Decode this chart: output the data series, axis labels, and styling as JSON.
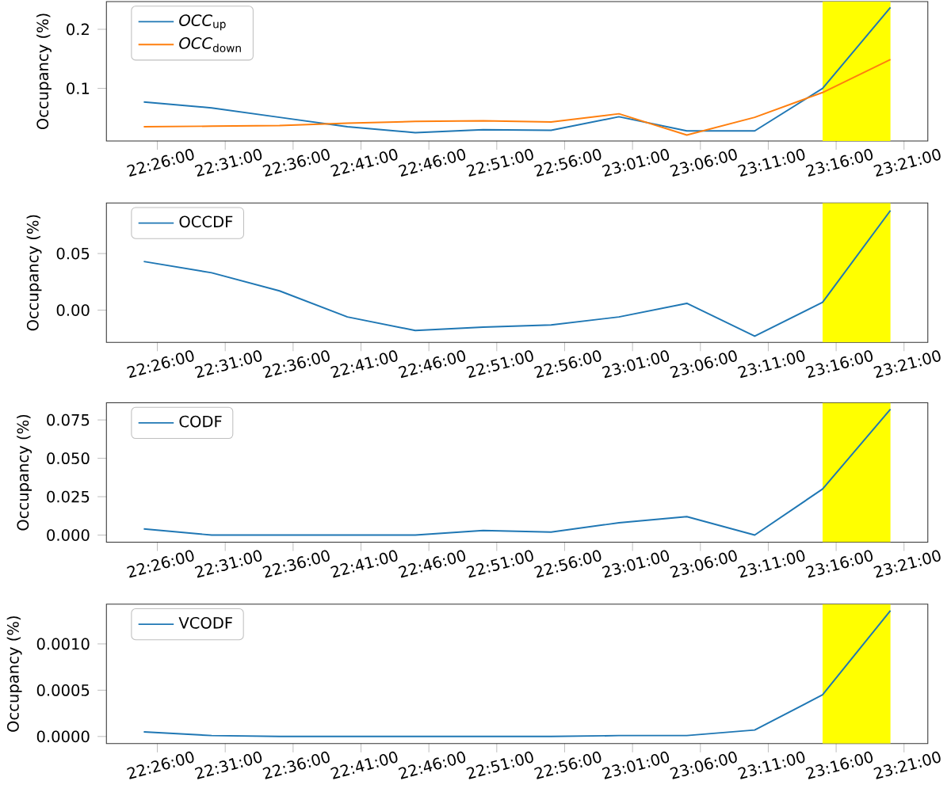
{
  "chart_data": [
    {
      "type": "line",
      "ylabel": "Occupancy (%)",
      "x": [
        22.41667,
        22.5,
        22.58333,
        22.66667,
        22.75,
        22.83333,
        22.91667,
        23.0,
        23.08333,
        23.16667,
        23.25,
        23.33333
      ],
      "series": [
        {
          "name": "*OCC*$_{up}$",
          "color": "#1f77b4",
          "values": [
            0.077,
            0.067,
            0.051,
            0.035,
            0.025,
            0.03,
            0.029,
            0.052,
            0.028,
            0.028,
            0.1,
            0.237
          ]
        },
        {
          "name": "*OCC*$_{down}$",
          "color": "#ff7f0e",
          "values": [
            0.035,
            0.036,
            0.037,
            0.041,
            0.044,
            0.045,
            0.043,
            0.057,
            0.021,
            0.051,
            0.093,
            0.149
          ]
        }
      ],
      "xlim": [
        22.3708,
        23.3792
      ],
      "ylim": [
        0.011,
        0.247
      ],
      "yticks": [
        0.1,
        0.2
      ],
      "xticks": [
        {
          "value": 22.43333,
          "label": "22:26:00"
        },
        {
          "value": 22.51667,
          "label": "22:31:00"
        },
        {
          "value": 22.6,
          "label": "22:36:00"
        },
        {
          "value": 22.68333,
          "label": "22:41:00"
        },
        {
          "value": 22.76667,
          "label": "22:46:00"
        },
        {
          "value": 22.85,
          "label": "22:51:00"
        },
        {
          "value": 22.93333,
          "label": "22:56:00"
        },
        {
          "value": 23.01667,
          "label": "23:01:00"
        },
        {
          "value": 23.1,
          "label": "23:06:00"
        },
        {
          "value": 23.18333,
          "label": "23:11:00"
        },
        {
          "value": 23.26667,
          "label": "23:16:00"
        },
        {
          "value": 23.35,
          "label": "23:21:00"
        }
      ],
      "bands": [
        {
          "axis": "x",
          "from": 23.25,
          "to": 23.33333,
          "color": "#ffff00"
        }
      ],
      "legend": "top left"
    },
    {
      "type": "line",
      "ylabel": "Occupancy (%)",
      "x": [
        22.41667,
        22.5,
        22.58333,
        22.66667,
        22.75,
        22.83333,
        22.91667,
        23.0,
        23.08333,
        23.16667,
        23.25,
        23.33333
      ],
      "series": [
        {
          "name": "OCCDF",
          "color": "#1f77b4",
          "values": [
            0.043,
            0.033,
            0.017,
            -0.006,
            -0.018,
            -0.015,
            -0.013,
            -0.006,
            0.006,
            -0.023,
            0.007,
            0.088
          ]
        }
      ],
      "xlim": [
        22.3708,
        23.3792
      ],
      "ylim": [
        -0.0284,
        0.0947
      ],
      "yticks": [
        {
          "value": 0,
          "label": "0.00"
        },
        {
          "value": 0.05,
          "label": "0.05"
        }
      ],
      "xticks": [
        {
          "value": 22.43333,
          "label": "22:26:00"
        },
        {
          "value": 22.51667,
          "label": "22:31:00"
        },
        {
          "value": 22.6,
          "label": "22:36:00"
        },
        {
          "value": 22.68333,
          "label": "22:41:00"
        },
        {
          "value": 22.76667,
          "label": "22:46:00"
        },
        {
          "value": 22.85,
          "label": "22:51:00"
        },
        {
          "value": 22.93333,
          "label": "22:56:00"
        },
        {
          "value": 23.01667,
          "label": "23:01:00"
        },
        {
          "value": 23.1,
          "label": "23:06:00"
        },
        {
          "value": 23.18333,
          "label": "23:11:00"
        },
        {
          "value": 23.26667,
          "label": "23:16:00"
        },
        {
          "value": 23.35,
          "label": "23:21:00"
        }
      ],
      "bands": [
        {
          "axis": "x",
          "from": 23.25,
          "to": 23.33333,
          "color": "#ffff00"
        }
      ],
      "legend": "top left"
    },
    {
      "type": "line",
      "ylabel": "Occupancy (%)",
      "x": [
        22.41667,
        22.5,
        22.58333,
        22.66667,
        22.75,
        22.83333,
        22.91667,
        23.0,
        23.08333,
        23.16667,
        23.25,
        23.33333
      ],
      "series": [
        {
          "name": "CODF",
          "color": "#1f77b4",
          "values": [
            0.004,
            0.0,
            0.0,
            0.0,
            0.0,
            0.003,
            0.002,
            0.008,
            0.012,
            0.0,
            0.03,
            0.082
          ]
        }
      ],
      "xlim": [
        22.3708,
        23.3792
      ],
      "ylim": [
        -0.0046,
        0.0862
      ],
      "yticks": [
        {
          "value": 0,
          "label": "0.000"
        },
        {
          "value": 0.025,
          "label": "0.025"
        },
        {
          "value": 0.05,
          "label": "0.050"
        },
        {
          "value": 0.075,
          "label": "0.075"
        }
      ],
      "xticks": [
        {
          "value": 22.43333,
          "label": "22:26:00"
        },
        {
          "value": 22.51667,
          "label": "22:31:00"
        },
        {
          "value": 22.6,
          "label": "22:36:00"
        },
        {
          "value": 22.68333,
          "label": "22:41:00"
        },
        {
          "value": 22.76667,
          "label": "22:46:00"
        },
        {
          "value": 22.85,
          "label": "22:51:00"
        },
        {
          "value": 22.93333,
          "label": "22:56:00"
        },
        {
          "value": 23.01667,
          "label": "23:01:00"
        },
        {
          "value": 23.1,
          "label": "23:06:00"
        },
        {
          "value": 23.18333,
          "label": "23:11:00"
        },
        {
          "value": 23.26667,
          "label": "23:16:00"
        },
        {
          "value": 23.35,
          "label": "23:21:00"
        }
      ],
      "bands": [
        {
          "axis": "x",
          "from": 23.25,
          "to": 23.33333,
          "color": "#ffff00"
        }
      ],
      "legend": "top left"
    },
    {
      "type": "line",
      "ylabel": "Occupancy (%)",
      "x": [
        22.41667,
        22.5,
        22.58333,
        22.66667,
        22.75,
        22.83333,
        22.91667,
        23.0,
        23.08333,
        23.16667,
        23.25,
        23.33333
      ],
      "series": [
        {
          "name": "VCODF",
          "color": "#1f77b4",
          "values": [
            5e-05,
            1e-05,
            0.0,
            0.0,
            0.0,
            0.0,
            0.0,
            1e-05,
            1e-05,
            7e-05,
            0.00045,
            0.00136
          ]
        }
      ],
      "xlim": [
        22.3708,
        23.3792
      ],
      "ylim": [
        -7.6e-05,
        0.00143
      ],
      "yticks": [
        {
          "value": 0,
          "label": "0.0000"
        },
        {
          "value": 0.0005,
          "label": "0.0005"
        },
        {
          "value": 0.001,
          "label": "0.0010"
        }
      ],
      "xticks": [
        {
          "value": 22.43333,
          "label": "22:26:00"
        },
        {
          "value": 22.51667,
          "label": "22:31:00"
        },
        {
          "value": 22.6,
          "label": "22:36:00"
        },
        {
          "value": 22.68333,
          "label": "22:41:00"
        },
        {
          "value": 22.76667,
          "label": "22:46:00"
        },
        {
          "value": 22.85,
          "label": "22:51:00"
        },
        {
          "value": 22.93333,
          "label": "22:56:00"
        },
        {
          "value": 23.01667,
          "label": "23:01:00"
        },
        {
          "value": 23.1,
          "label": "23:06:00"
        },
        {
          "value": 23.18333,
          "label": "23:11:00"
        },
        {
          "value": 23.26667,
          "label": "23:16:00"
        },
        {
          "value": 23.35,
          "label": "23:21:00"
        }
      ],
      "bands": [
        {
          "axis": "x",
          "from": 23.25,
          "to": 23.33333,
          "color": "#ffff00"
        }
      ],
      "legend": "top left"
    }
  ]
}
